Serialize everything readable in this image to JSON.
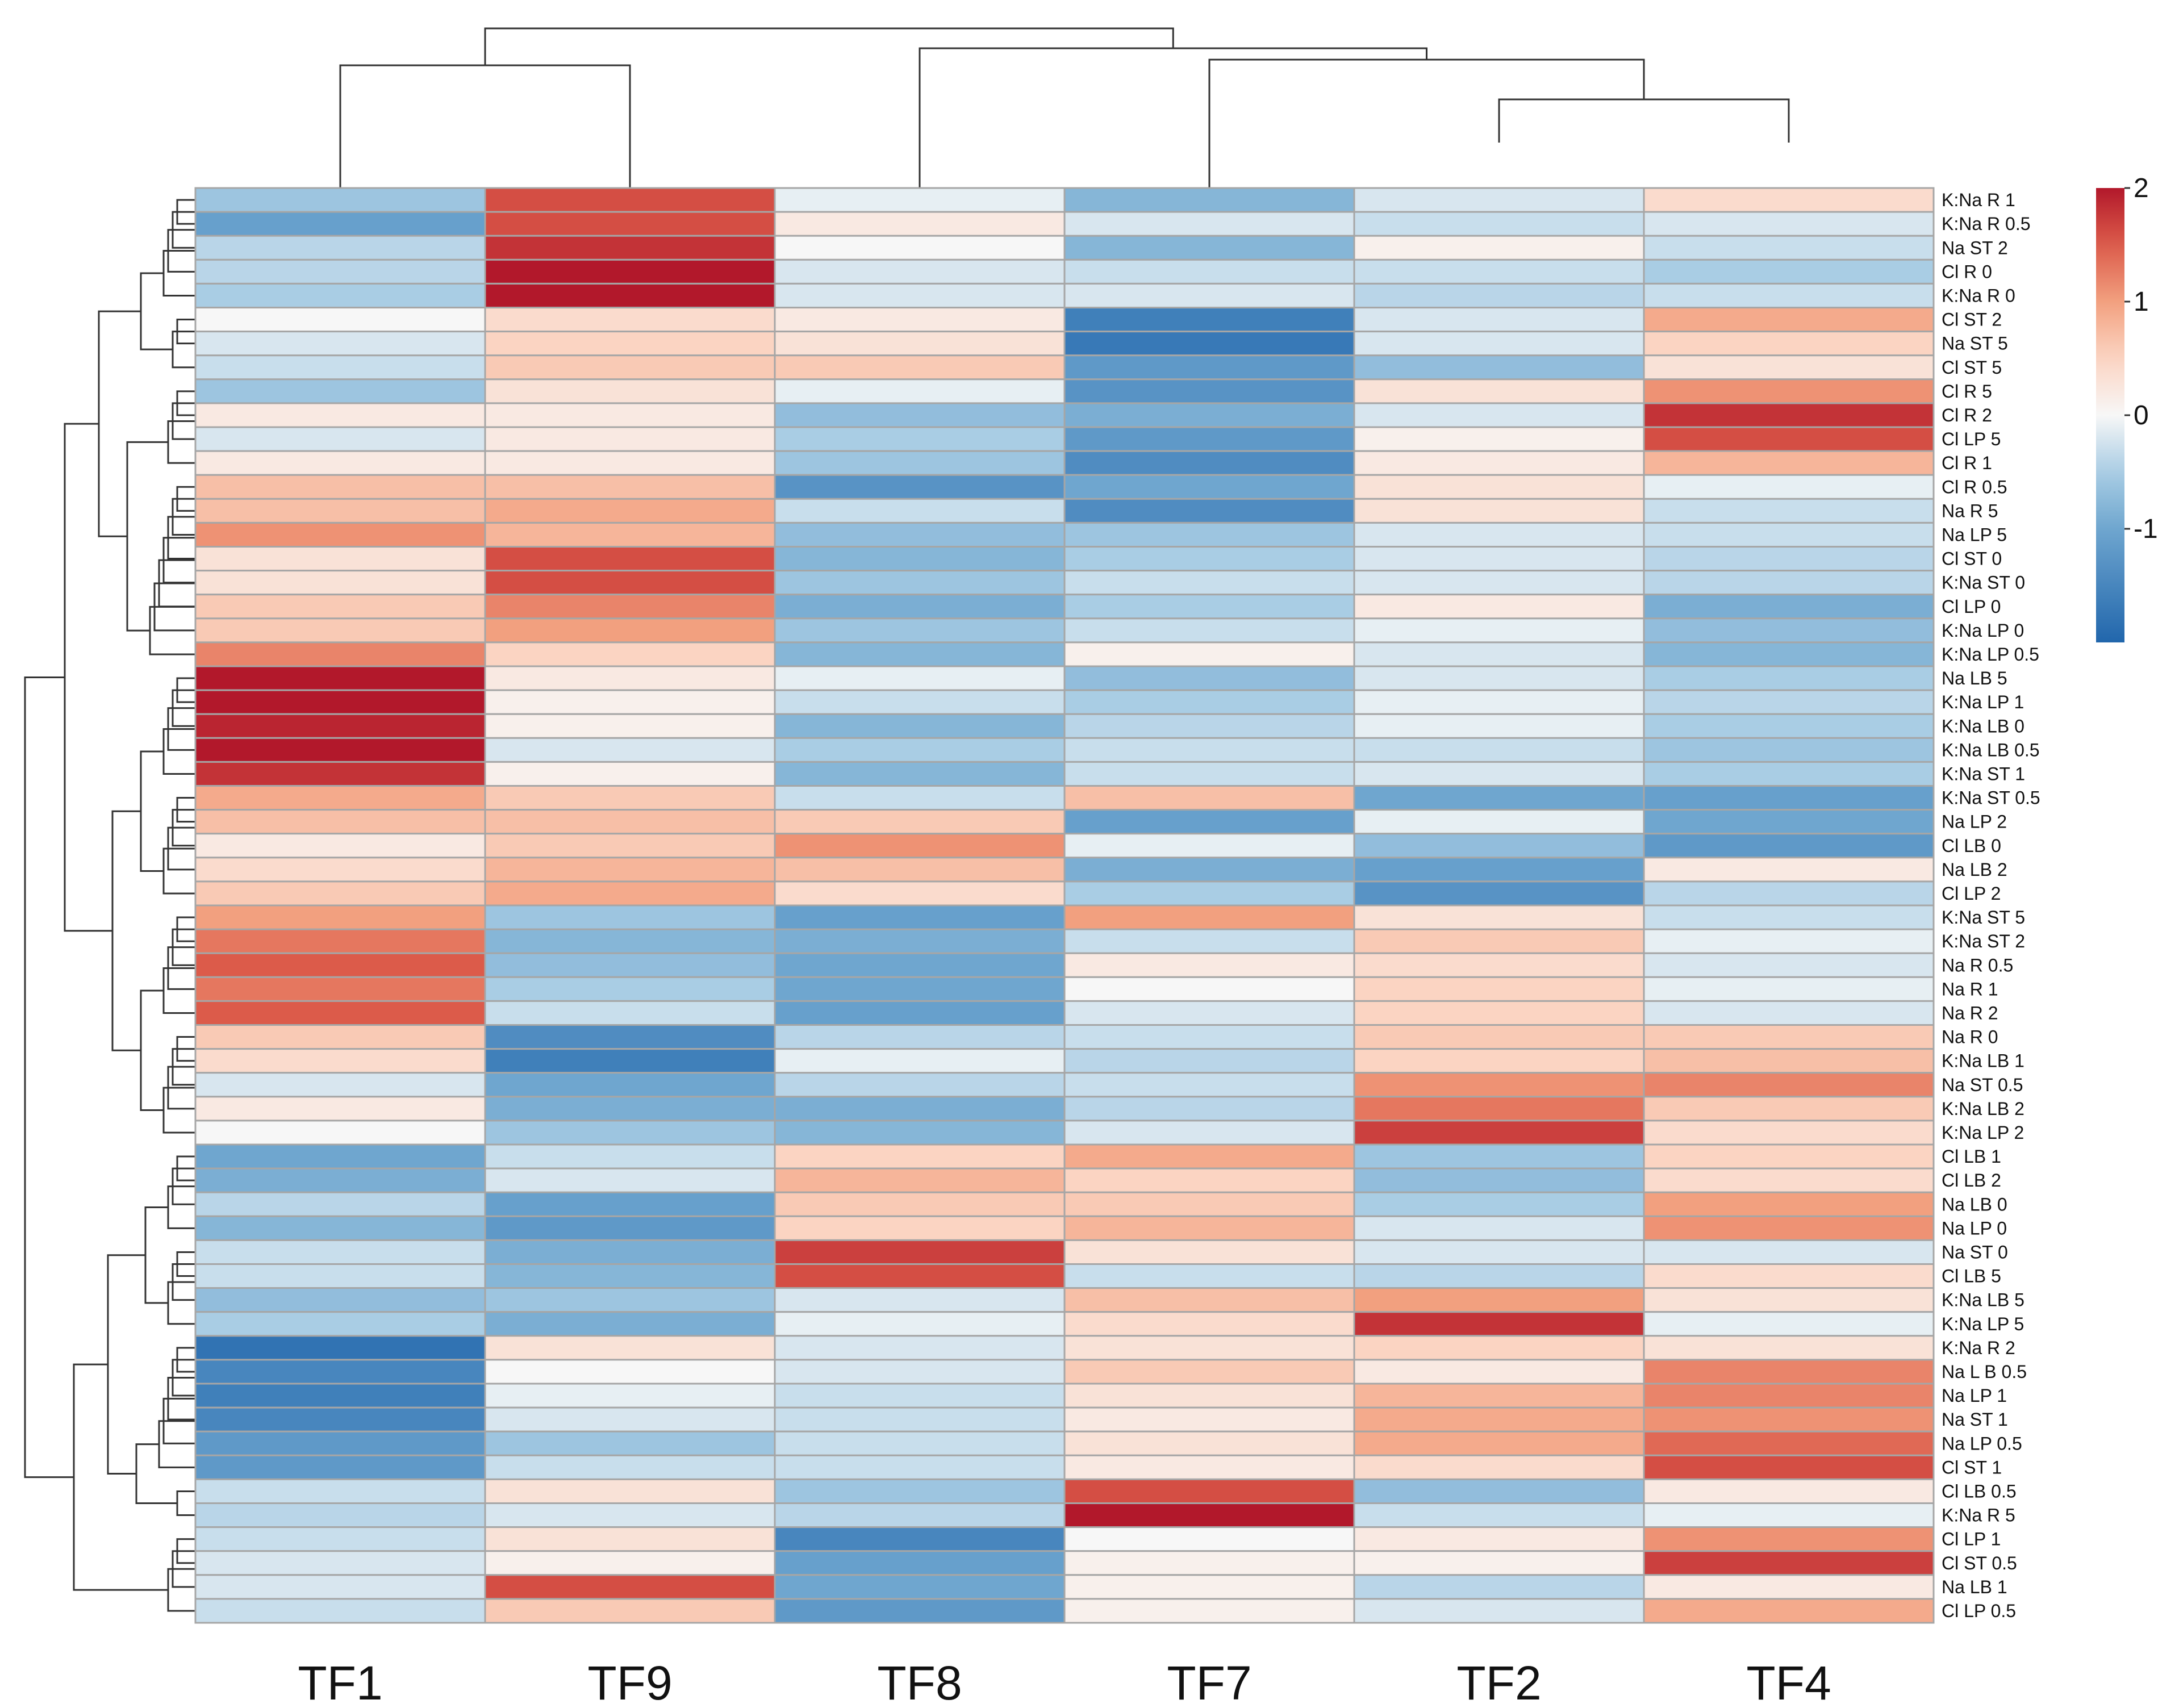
{
  "chart_data": {
    "type": "heatmap",
    "title": "",
    "columns": [
      "TF1",
      "TF9",
      "TF8",
      "TF7",
      "TF2",
      "TF4"
    ],
    "rows": [
      {
        "label": "K:Na R 1",
        "values": [
          -0.6,
          1.6,
          -0.1,
          -0.8,
          -0.2,
          0.4
        ]
      },
      {
        "label": "K:Na R 0.5",
        "values": [
          -1.1,
          1.6,
          0.2,
          -0.2,
          -0.3,
          -0.2
        ]
      },
      {
        "label": "Na ST 2",
        "values": [
          -0.4,
          1.8,
          0.0,
          -0.8,
          0.1,
          -0.3
        ]
      },
      {
        "label": "Cl R 0",
        "values": [
          -0.4,
          2.0,
          -0.2,
          -0.3,
          -0.3,
          -0.5
        ]
      },
      {
        "label": "K:Na R 0",
        "values": [
          -0.5,
          2.0,
          -0.2,
          -0.2,
          -0.4,
          -0.3
        ]
      },
      {
        "label": "Cl ST 2",
        "values": [
          0.0,
          0.4,
          0.2,
          -1.6,
          -0.2,
          0.9
        ]
      },
      {
        "label": "Na ST 5",
        "values": [
          -0.2,
          0.5,
          0.3,
          -1.7,
          -0.2,
          0.5
        ]
      },
      {
        "label": "Cl ST 5",
        "values": [
          -0.3,
          0.6,
          0.6,
          -1.2,
          -0.7,
          0.3
        ]
      },
      {
        "label": "Cl R 5",
        "values": [
          -0.6,
          0.3,
          -0.1,
          -1.3,
          0.3,
          1.1
        ]
      },
      {
        "label": "Cl R 2",
        "values": [
          0.2,
          0.2,
          -0.7,
          -0.9,
          -0.2,
          1.8
        ]
      },
      {
        "label": "Cl LP 5",
        "values": [
          -0.2,
          0.2,
          -0.5,
          -1.2,
          0.1,
          1.6
        ]
      },
      {
        "label": "Cl R 1",
        "values": [
          0.2,
          0.2,
          -0.6,
          -1.4,
          0.2,
          0.8
        ]
      },
      {
        "label": "Cl R 0.5",
        "values": [
          0.7,
          0.7,
          -1.3,
          -1.0,
          0.3,
          -0.1
        ]
      },
      {
        "label": "Na R 5",
        "values": [
          0.7,
          0.9,
          -0.3,
          -1.4,
          0.3,
          -0.3
        ]
      },
      {
        "label": "Na LP 5",
        "values": [
          1.1,
          0.8,
          -0.7,
          -0.6,
          -0.2,
          -0.3
        ]
      },
      {
        "label": "Cl ST 0",
        "values": [
          0.3,
          1.6,
          -0.8,
          -0.5,
          -0.2,
          -0.4
        ]
      },
      {
        "label": "K:Na ST 0",
        "values": [
          0.3,
          1.6,
          -0.6,
          -0.3,
          -0.2,
          -0.4
        ]
      },
      {
        "label": "Cl LP 0",
        "values": [
          0.6,
          1.2,
          -0.9,
          -0.5,
          0.2,
          -0.9
        ]
      },
      {
        "label": "K:Na LP 0",
        "values": [
          0.6,
          1.0,
          -0.6,
          -0.3,
          -0.1,
          -0.7
        ]
      },
      {
        "label": "K:Na LP 0.5",
        "values": [
          1.2,
          0.5,
          -0.8,
          0.1,
          -0.2,
          -0.8
        ]
      },
      {
        "label": "Na LB 5",
        "values": [
          2.0,
          0.2,
          -0.1,
          -0.7,
          -0.2,
          -0.5
        ]
      },
      {
        "label": "K:Na LP 1",
        "values": [
          2.0,
          0.1,
          -0.3,
          -0.5,
          -0.1,
          -0.4
        ]
      },
      {
        "label": "K:Na LB 0",
        "values": [
          1.9,
          0.1,
          -0.8,
          -0.4,
          -0.1,
          -0.5
        ]
      },
      {
        "label": "K:Na LB 0.5",
        "values": [
          2.0,
          -0.2,
          -0.5,
          -0.3,
          -0.3,
          -0.6
        ]
      },
      {
        "label": "K:Na ST 1",
        "values": [
          1.8,
          0.1,
          -0.8,
          -0.3,
          -0.2,
          -0.5
        ]
      },
      {
        "label": "K:Na ST 0.5",
        "values": [
          0.9,
          0.6,
          -0.3,
          0.7,
          -1.0,
          -1.1
        ]
      },
      {
        "label": "Na LP 2",
        "values": [
          0.7,
          0.7,
          0.6,
          -1.1,
          -0.1,
          -1.0
        ]
      },
      {
        "label": "Cl LB 0",
        "values": [
          0.2,
          0.6,
          1.1,
          -0.1,
          -0.7,
          -1.2
        ]
      },
      {
        "label": "Na LB 2",
        "values": [
          0.4,
          0.8,
          0.7,
          -0.9,
          -1.1,
          0.2
        ]
      },
      {
        "label": "Cl LP 2",
        "values": [
          0.6,
          0.9,
          0.4,
          -0.5,
          -1.3,
          -0.4
        ]
      },
      {
        "label": "K:Na ST 5",
        "values": [
          1.0,
          -0.6,
          -1.1,
          1.0,
          0.3,
          -0.3
        ]
      },
      {
        "label": "K:Na ST 2",
        "values": [
          1.3,
          -0.8,
          -0.9,
          -0.3,
          0.6,
          -0.1
        ]
      },
      {
        "label": "Na R 0.5",
        "values": [
          1.5,
          -0.7,
          -1.0,
          0.2,
          0.4,
          -0.2
        ]
      },
      {
        "label": "Na R 1",
        "values": [
          1.3,
          -0.5,
          -1.0,
          0.0,
          0.5,
          -0.1
        ]
      },
      {
        "label": "Na R 2",
        "values": [
          1.5,
          -0.3,
          -1.1,
          -0.2,
          0.5,
          -0.2
        ]
      },
      {
        "label": "Na R 0",
        "values": [
          0.6,
          -1.4,
          -0.4,
          -0.3,
          0.6,
          0.6
        ]
      },
      {
        "label": "K:Na LB 1",
        "values": [
          0.4,
          -1.6,
          -0.1,
          -0.4,
          0.5,
          0.7
        ]
      },
      {
        "label": "Na ST 0.5",
        "values": [
          -0.2,
          -1.0,
          -0.4,
          -0.3,
          1.1,
          1.2
        ]
      },
      {
        "label": "K:Na LB 2",
        "values": [
          0.2,
          -0.9,
          -0.9,
          -0.4,
          1.3,
          0.6
        ]
      },
      {
        "label": "K:Na LP 2",
        "values": [
          0.0,
          -0.6,
          -0.8,
          -0.2,
          1.7,
          0.4
        ]
      },
      {
        "label": "Cl LB 1",
        "values": [
          -1.0,
          -0.3,
          0.5,
          0.9,
          -0.6,
          0.5
        ]
      },
      {
        "label": "Cl LB 2",
        "values": [
          -0.9,
          -0.2,
          0.8,
          0.5,
          -0.7,
          0.4
        ]
      },
      {
        "label": "Na LB 0",
        "values": [
          -0.4,
          -1.1,
          0.6,
          0.6,
          -0.5,
          1.0
        ]
      },
      {
        "label": "Na LP 0",
        "values": [
          -0.8,
          -1.2,
          0.5,
          0.8,
          -0.2,
          1.1
        ]
      },
      {
        "label": "Na ST 0",
        "values": [
          -0.3,
          -0.9,
          1.7,
          0.3,
          -0.2,
          -0.2
        ]
      },
      {
        "label": "Cl LB 5",
        "values": [
          -0.3,
          -0.8,
          1.6,
          -0.3,
          -0.4,
          0.4
        ]
      },
      {
        "label": "K:Na LB 5",
        "values": [
          -0.7,
          -0.6,
          -0.2,
          0.7,
          1.0,
          0.3
        ]
      },
      {
        "label": "K:Na LP 5",
        "values": [
          -0.5,
          -0.9,
          -0.1,
          0.4,
          1.8,
          -0.1
        ]
      },
      {
        "label": "K:Na R 2",
        "values": [
          -1.8,
          0.3,
          -0.2,
          0.3,
          0.5,
          0.3
        ]
      },
      {
        "label": "Na L B 0.5",
        "values": [
          -1.5,
          0.0,
          -0.2,
          0.6,
          0.2,
          1.2
        ]
      },
      {
        "label": "Na LP 1",
        "values": [
          -1.6,
          -0.1,
          -0.3,
          0.3,
          0.8,
          1.2
        ]
      },
      {
        "label": "Na ST 1",
        "values": [
          -1.5,
          -0.2,
          -0.3,
          0.2,
          0.9,
          1.1
        ]
      },
      {
        "label": "Na LP 0.5",
        "values": [
          -1.2,
          -0.6,
          -0.3,
          0.3,
          0.9,
          1.4
        ]
      },
      {
        "label": "Cl ST 1",
        "values": [
          -1.2,
          -0.3,
          -0.3,
          0.2,
          0.4,
          1.6
        ]
      },
      {
        "label": "Cl LB 0.5",
        "values": [
          -0.3,
          0.3,
          -0.6,
          1.6,
          -0.7,
          0.2
        ]
      },
      {
        "label": "K:Na R 5",
        "values": [
          -0.4,
          -0.2,
          -0.4,
          2.0,
          -0.3,
          -0.1
        ]
      },
      {
        "label": "Cl LP 1",
        "values": [
          -0.3,
          0.3,
          -1.5,
          0.0,
          0.2,
          1.1
        ]
      },
      {
        "label": "Cl ST 0.5",
        "values": [
          -0.2,
          0.1,
          -1.1,
          0.1,
          0.1,
          1.7
        ]
      },
      {
        "label": "Na LB 1",
        "values": [
          -0.2,
          1.6,
          -1.0,
          0.1,
          -0.4,
          0.2
        ]
      },
      {
        "label": "Cl LP 0.5",
        "values": [
          -0.3,
          0.6,
          -1.2,
          0.1,
          -0.2,
          0.9
        ]
      }
    ],
    "scale": {
      "min": -2,
      "max": 2,
      "ticks": [
        2,
        1,
        0,
        -1
      ]
    },
    "column_dendrogram": {
      "order": [
        "TF1",
        "TF9",
        "TF8",
        "TF7",
        "TF2",
        "TF4"
      ],
      "clusters": "((TF1,TF9),(TF8,(TF7,(TF2,TF4))))"
    },
    "row_dendrogram": "hierarchical clustering of rows (drawn as tree on left)",
    "colors": {
      "low": "#2166ac",
      "mid": "#f7f7f7",
      "high": "#b2182b"
    }
  }
}
